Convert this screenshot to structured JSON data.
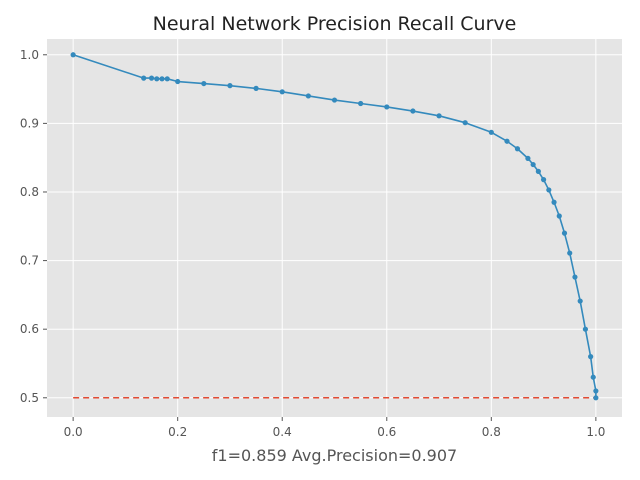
{
  "chart_data": {
    "type": "line",
    "title": "Neural Network Precision Recall Curve",
    "xlabel": "f1=0.859  Avg.Precision=0.907",
    "ylabel": "",
    "xlim": [
      -0.05,
      1.05
    ],
    "ylim": [
      0.472,
      1.023
    ],
    "xticks": [
      "0.0",
      "0.2",
      "0.4",
      "0.6",
      "0.8",
      "1.0"
    ],
    "yticks": [
      "0.5",
      "0.6",
      "0.7",
      "0.8",
      "0.9",
      "1.0"
    ],
    "grid": true,
    "style": "ggplot",
    "series": [
      {
        "color": "#348ABD",
        "marker": "dot",
        "x": [
          0.0,
          0.135,
          0.15,
          0.16,
          0.17,
          0.18,
          0.2,
          0.25,
          0.3,
          0.35,
          0.4,
          0.45,
          0.5,
          0.55,
          0.6,
          0.65,
          0.7,
          0.75,
          0.8,
          0.83,
          0.85,
          0.87,
          0.88,
          0.89,
          0.9,
          0.91,
          0.92,
          0.93,
          0.94,
          0.95,
          0.96,
          0.97,
          0.98,
          0.99,
          0.995,
          1.0,
          1.0
        ],
        "y": [
          1.0,
          0.966,
          0.966,
          0.965,
          0.965,
          0.965,
          0.961,
          0.958,
          0.955,
          0.951,
          0.946,
          0.94,
          0.934,
          0.929,
          0.924,
          0.918,
          0.911,
          0.901,
          0.887,
          0.874,
          0.863,
          0.849,
          0.84,
          0.83,
          0.818,
          0.803,
          0.785,
          0.765,
          0.74,
          0.711,
          0.676,
          0.641,
          0.6,
          0.56,
          0.53,
          0.51,
          0.5
        ]
      },
      {
        "color": "#E24A33",
        "dashed": true,
        "x": [
          0.0,
          1.0
        ],
        "y": [
          0.5,
          0.5
        ]
      }
    ]
  }
}
